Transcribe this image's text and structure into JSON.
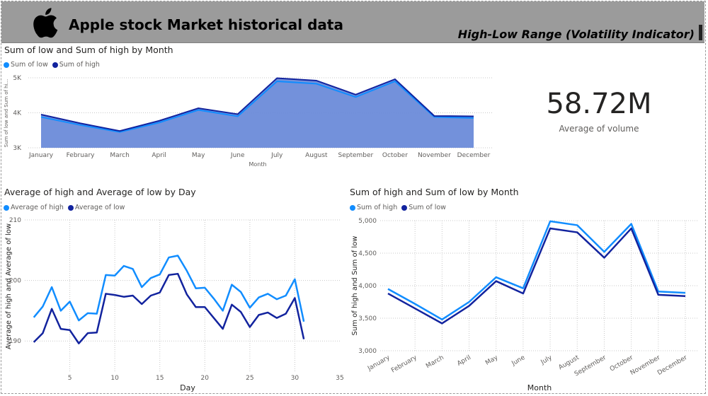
{
  "header": {
    "title": "Apple stock Market historical data",
    "subtitle": "High-Low Range (Volatility Indicator)"
  },
  "kpi": {
    "value": "58.72M",
    "label": "Average of volume"
  },
  "colors": {
    "light": "#118DFF",
    "dark": "#12239E",
    "area_fill": "#6b8bd9",
    "header": "#9b9b9b"
  },
  "chart_data": [
    {
      "id": "area",
      "type": "area",
      "title": "Sum of low and Sum of high by Month",
      "xlabel": "Month",
      "ylabel": "Sum of low and Sum of hi...",
      "categories": [
        "January",
        "February",
        "March",
        "April",
        "May",
        "June",
        "July",
        "August",
        "September",
        "October",
        "November",
        "December"
      ],
      "ylim": [
        3000,
        5000
      ],
      "yticks": [
        3000,
        4000,
        5000
      ],
      "ytick_labels": [
        "3K",
        "4K",
        "5K"
      ],
      "series": [
        {
          "name": "Sum of low",
          "color": "#118DFF",
          "values": [
            3880,
            3650,
            3450,
            3720,
            4080,
            3900,
            4900,
            4830,
            4450,
            4900,
            3880,
            3850
          ]
        },
        {
          "name": "Sum of high",
          "color": "#12239E",
          "values": [
            3950,
            3700,
            3480,
            3770,
            4130,
            3960,
            4990,
            4920,
            4520,
            4960,
            3910,
            3900
          ]
        }
      ],
      "grid": true,
      "legend": "top-left"
    },
    {
      "id": "day",
      "type": "line",
      "title": "Average of high and Average of low by Day",
      "xlabel": "Day",
      "ylabel": "Average of high and Average of low",
      "xlim": [
        0,
        35
      ],
      "xticks": [
        5,
        10,
        15,
        20,
        25,
        30,
        35
      ],
      "ylim": [
        185,
        210
      ],
      "yticks": [
        190,
        200,
        210
      ],
      "x": [
        1,
        2,
        3,
        4,
        5,
        6,
        7,
        8,
        9,
        10,
        11,
        12,
        13,
        14,
        15,
        16,
        17,
        18,
        19,
        20,
        21,
        22,
        23,
        24,
        25,
        26,
        27,
        28,
        29,
        30,
        31
      ],
      "series": [
        {
          "name": "Average of high",
          "color": "#118DFF",
          "values": [
            193.9,
            195.7,
            198.9,
            195.0,
            196.5,
            193.4,
            194.6,
            194.5,
            200.9,
            200.8,
            202.4,
            201.9,
            198.9,
            200.4,
            201.0,
            203.8,
            204.1,
            201.6,
            198.7,
            198.8,
            197.0,
            195.0,
            199.3,
            198.1,
            195.5,
            197.2,
            197.8,
            196.9,
            197.5,
            200.2,
            193.2
          ]
        },
        {
          "name": "Average of low",
          "color": "#12239E",
          "values": [
            189.8,
            191.3,
            195.3,
            192.0,
            191.8,
            189.6,
            191.3,
            191.4,
            197.8,
            197.6,
            197.3,
            197.5,
            196.1,
            197.5,
            198.0,
            200.9,
            201.1,
            197.7,
            195.6,
            195.6,
            193.8,
            192.0,
            196.0,
            194.8,
            192.3,
            194.3,
            194.7,
            193.8,
            194.5,
            197.1,
            190.3
          ]
        }
      ],
      "grid": true,
      "legend": "top-left"
    },
    {
      "id": "month",
      "type": "line",
      "title": "Sum of high and Sum of low by Month",
      "xlabel": "Month",
      "ylabel": "Sum of high and Sum of low",
      "categories": [
        "January",
        "February",
        "March",
        "April",
        "May",
        "June",
        "July",
        "August",
        "September",
        "October",
        "November",
        "December"
      ],
      "ylim": [
        3000,
        5000
      ],
      "yticks": [
        3000,
        3500,
        4000,
        4500,
        5000
      ],
      "ytick_labels": [
        "3,000",
        "3,500",
        "4,000",
        "4,500",
        "5,000"
      ],
      "series": [
        {
          "name": "Sum of high",
          "color": "#118DFF",
          "values": [
            3950,
            3720,
            3480,
            3750,
            4130,
            3960,
            4990,
            4930,
            4520,
            4950,
            3910,
            3890
          ]
        },
        {
          "name": "Sum of low",
          "color": "#12239E",
          "values": [
            3880,
            3650,
            3420,
            3690,
            4070,
            3880,
            4880,
            4820,
            4430,
            4880,
            3860,
            3840
          ]
        }
      ],
      "grid": true,
      "legend": "top-left"
    }
  ]
}
